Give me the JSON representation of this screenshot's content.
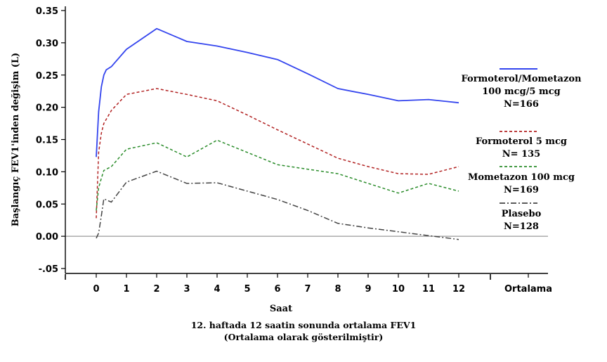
{
  "chart_data": {
    "type": "line",
    "ylabel": "Başlangıç FEV1'inden değişim (L)",
    "xlabel": "Saat",
    "ylim": [
      -0.05,
      0.35
    ],
    "yticks": [
      -0.05,
      0.0,
      0.05,
      0.1,
      0.15,
      0.2,
      0.25,
      0.3,
      0.35
    ],
    "ytick_labels": [
      "-.05",
      "0.00",
      "0.05",
      "0.10",
      "0.15",
      "0.20",
      "0.25",
      "0.30",
      "0.35"
    ],
    "xticks": [
      0,
      1,
      2,
      3,
      4,
      5,
      6,
      7,
      8,
      9,
      10,
      11,
      12
    ],
    "xtick_labels": [
      "0",
      "1",
      "2",
      "3",
      "4",
      "5",
      "6",
      "7",
      "8",
      "9",
      "10",
      "11",
      "12"
    ],
    "extra_xtick_label": "Ortalama",
    "zero_line": true,
    "series": [
      {
        "name": "Formoterol/Mometazon 100 mcg/5 mcg N=166",
        "legend_lines": [
          "Formoterol/Mometazon",
          "100 mcg/5 mcg",
          "N=166"
        ],
        "color": "#3344ee",
        "dash": "solid",
        "points": [
          [
            0,
            0.123
          ],
          [
            0.08,
            0.193
          ],
          [
            0.17,
            0.232
          ],
          [
            0.25,
            0.25
          ],
          [
            0.33,
            0.258
          ],
          [
            0.5,
            0.263
          ],
          [
            1,
            0.29
          ],
          [
            2,
            0.322
          ],
          [
            3,
            0.302
          ],
          [
            4,
            0.295
          ],
          [
            5,
            0.285
          ],
          [
            6,
            0.274
          ],
          [
            7,
            0.252
          ],
          [
            8,
            0.229
          ],
          [
            9,
            0.22
          ],
          [
            10,
            0.21
          ],
          [
            11,
            0.212
          ],
          [
            12,
            0.207
          ]
        ]
      },
      {
        "name": "Formoterol 5 mcg N= 135",
        "legend_lines": [
          "Formoterol 5 mcg",
          "N= 135"
        ],
        "color": "#b22222",
        "dash": "dashed",
        "points": [
          [
            0,
            0.028
          ],
          [
            0.08,
            0.13
          ],
          [
            0.17,
            0.16
          ],
          [
            0.25,
            0.175
          ],
          [
            0.5,
            0.195
          ],
          [
            1,
            0.22
          ],
          [
            2,
            0.229
          ],
          [
            3,
            0.22
          ],
          [
            4,
            0.21
          ],
          [
            5,
            0.188
          ],
          [
            6,
            0.165
          ],
          [
            7,
            0.143
          ],
          [
            8,
            0.121
          ],
          [
            9,
            0.108
          ],
          [
            10,
            0.097
          ],
          [
            11,
            0.096
          ],
          [
            12,
            0.108
          ]
        ]
      },
      {
        "name": "Mometazon 100 mcg N=169",
        "legend_lines": [
          "Mometazon 100 mcg",
          "N=169"
        ],
        "color": "#2a8c2a",
        "dash": "dashed",
        "points": [
          [
            0,
            0.04
          ],
          [
            0.08,
            0.075
          ],
          [
            0.17,
            0.09
          ],
          [
            0.25,
            0.102
          ],
          [
            0.5,
            0.108
          ],
          [
            1,
            0.135
          ],
          [
            2,
            0.145
          ],
          [
            3,
            0.123
          ],
          [
            4,
            0.149
          ],
          [
            5,
            0.13
          ],
          [
            6,
            0.111
          ],
          [
            7,
            0.104
          ],
          [
            8,
            0.097
          ],
          [
            9,
            0.082
          ],
          [
            10,
            0.067
          ],
          [
            11,
            0.082
          ],
          [
            12,
            0.07
          ]
        ]
      },
      {
        "name": "Plasebo N=128",
        "legend_lines": [
          "Plasebo",
          "N=128"
        ],
        "color": "#444444",
        "dash": "dashdot",
        "points": [
          [
            0,
            -0.003
          ],
          [
            0.08,
            0.005
          ],
          [
            0.17,
            0.032
          ],
          [
            0.25,
            0.058
          ],
          [
            0.5,
            0.053
          ],
          [
            1,
            0.084
          ],
          [
            2,
            0.101
          ],
          [
            3,
            0.082
          ],
          [
            4,
            0.083
          ],
          [
            5,
            0.07
          ],
          [
            6,
            0.057
          ],
          [
            7,
            0.04
          ],
          [
            8,
            0.02
          ],
          [
            9,
            0.013
          ],
          [
            10,
            0.007
          ],
          [
            11,
            0.001
          ],
          [
            12,
            -0.005
          ]
        ]
      }
    ]
  },
  "caption": {
    "line1": "12. haftada 12 saatin sonunda ortalama FEV1",
    "line2": "(Ortalama olarak gösterilmiştir)"
  }
}
